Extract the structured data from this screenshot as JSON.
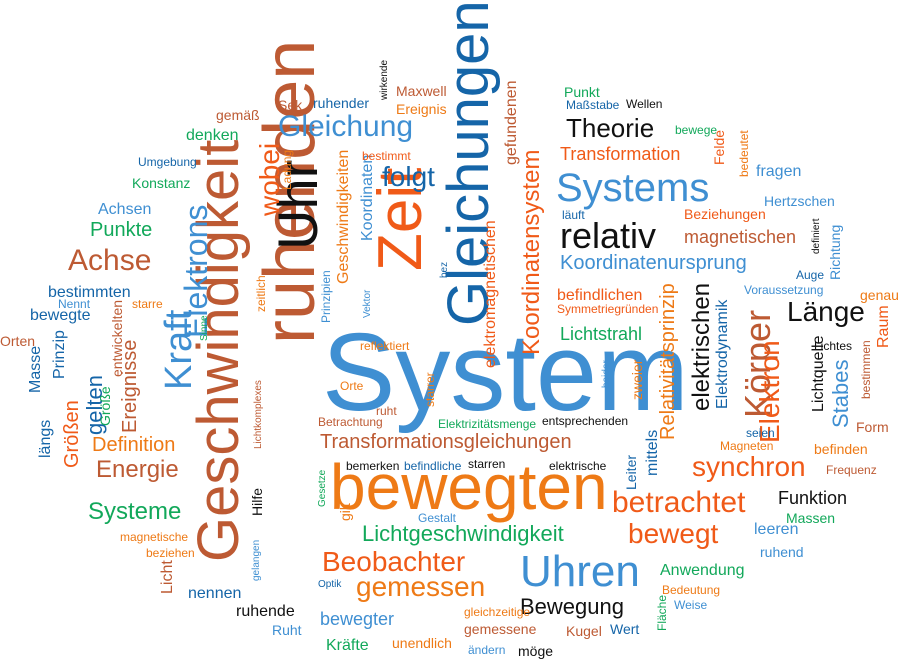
{
  "palette": {
    "blue": "#3f8fd2",
    "darkblue": "#1565a8",
    "rust": "#bd5a33",
    "orange": "#ee7a16",
    "redorange": "#f05a18",
    "green": "#12a85a",
    "black": "#111111"
  },
  "words": [
    {
      "text": "System",
      "color": "blue"
    },
    {
      "text": "Zeit",
      "color": "redorange"
    },
    {
      "text": "Gleichungen",
      "color": "darkblue"
    },
    {
      "text": "ruhenden",
      "color": "rust"
    },
    {
      "text": "Geschwindigkeit",
      "color": "rust"
    },
    {
      "text": "bewegten",
      "color": "orange"
    },
    {
      "text": "Uhr",
      "color": "black"
    },
    {
      "text": "Systems",
      "color": "blue"
    },
    {
      "text": "relativ",
      "color": "black"
    },
    {
      "text": "Uhren",
      "color": "blue"
    },
    {
      "text": "Gleichung",
      "color": "blue"
    },
    {
      "text": "Körper",
      "color": "rust"
    },
    {
      "text": "Kraft",
      "color": "blue"
    },
    {
      "text": "Elektrons",
      "color": "blue"
    },
    {
      "text": "Achse",
      "color": "rust"
    },
    {
      "text": "Beobachter",
      "color": "redorange"
    },
    {
      "text": "gemessen",
      "color": "orange"
    },
    {
      "text": "Transformationsgleichungen",
      "color": "rust"
    },
    {
      "text": "betrachtet",
      "color": "redorange"
    },
    {
      "text": "synchron",
      "color": "redorange"
    },
    {
      "text": "bewegt",
      "color": "redorange"
    },
    {
      "text": "elektrischen",
      "color": "black"
    },
    {
      "text": "Länge",
      "color": "black"
    },
    {
      "text": "Theorie",
      "color": "black"
    },
    {
      "text": "folgt",
      "color": "darkblue"
    },
    {
      "text": "wobei",
      "color": "redorange"
    },
    {
      "text": "Koordinatensystem",
      "color": "redorange"
    },
    {
      "text": "Energie",
      "color": "rust"
    },
    {
      "text": "Systeme",
      "color": "green"
    },
    {
      "text": "Lichtgeschwindigkeit",
      "color": "green"
    },
    {
      "text": "Elektron",
      "color": "redorange"
    },
    {
      "text": "Bewegung",
      "color": "black"
    },
    {
      "text": "Koordinatenursprung",
      "color": "blue"
    },
    {
      "text": "Relativitätsprinzip",
      "color": "orange"
    },
    {
      "text": "gelten",
      "color": "darkblue"
    },
    {
      "text": "Ereignisse",
      "color": "rust"
    },
    {
      "text": "Definition",
      "color": "orange"
    },
    {
      "text": "Größen",
      "color": "redorange"
    },
    {
      "text": "Stabes",
      "color": "blue"
    },
    {
      "text": "Elektrodynamik",
      "color": "darkblue"
    },
    {
      "text": "Lichtquelle",
      "color": "black"
    },
    {
      "text": "Funktion",
      "color": "black"
    },
    {
      "text": "Transformation",
      "color": "redorange"
    },
    {
      "text": "magnetischen",
      "color": "rust"
    },
    {
      "text": "Lichtstrahl",
      "color": "green"
    },
    {
      "text": "befindlichen",
      "color": "redorange"
    },
    {
      "text": "Punkte",
      "color": "green"
    },
    {
      "text": "Achsen",
      "color": "blue"
    },
    {
      "text": "denken",
      "color": "green"
    },
    {
      "text": "Konstanz",
      "color": "green"
    },
    {
      "text": "Umgebung",
      "color": "darkblue"
    },
    {
      "text": "gemäß",
      "color": "rust"
    },
    {
      "text": "Sek",
      "color": "rust"
    },
    {
      "text": "ruhender",
      "color": "darkblue"
    },
    {
      "text": "Maxwell",
      "color": "rust"
    },
    {
      "text": "Ereignis",
      "color": "orange"
    },
    {
      "text": "wirkende",
      "color": "black"
    },
    {
      "text": "Punkt",
      "color": "green"
    },
    {
      "text": "Maßstabe",
      "color": "darkblue"
    },
    {
      "text": "Wellen",
      "color": "black"
    },
    {
      "text": "bewege",
      "color": "green"
    },
    {
      "text": "Felde",
      "color": "redorange"
    },
    {
      "text": "bedeutet",
      "color": "orange"
    },
    {
      "text": "fragen",
      "color": "blue"
    },
    {
      "text": "Hertzschen",
      "color": "blue"
    },
    {
      "text": "läuft",
      "color": "darkblue"
    },
    {
      "text": "Beziehungen",
      "color": "redorange"
    },
    {
      "text": "definiert",
      "color": "black"
    },
    {
      "text": "Richtung",
      "color": "blue"
    },
    {
      "text": "Auge",
      "color": "darkblue"
    },
    {
      "text": "Voraussetzung",
      "color": "blue"
    },
    {
      "text": "genau",
      "color": "orange"
    },
    {
      "text": "Raum",
      "color": "redorange"
    },
    {
      "text": "Form",
      "color": "rust"
    },
    {
      "text": "befinden",
      "color": "orange"
    },
    {
      "text": "Frequenz",
      "color": "rust"
    },
    {
      "text": "Massen",
      "color": "green"
    },
    {
      "text": "leeren",
      "color": "blue"
    },
    {
      "text": "ruhend",
      "color": "blue"
    },
    {
      "text": "Anwendung",
      "color": "green"
    },
    {
      "text": "Bedeutung",
      "color": "orange"
    },
    {
      "text": "Weise",
      "color": "blue"
    },
    {
      "text": "Fläche",
      "color": "green"
    },
    {
      "text": "Wert",
      "color": "darkblue"
    },
    {
      "text": "Kugel",
      "color": "rust"
    },
    {
      "text": "möge",
      "color": "black"
    },
    {
      "text": "ändern",
      "color": "blue"
    },
    {
      "text": "gemessene",
      "color": "rust"
    },
    {
      "text": "gleichzeitige",
      "color": "orange"
    },
    {
      "text": "unendlich",
      "color": "orange"
    },
    {
      "text": "Kräfte",
      "color": "green"
    },
    {
      "text": "bewegter",
      "color": "blue"
    },
    {
      "text": "Ruht",
      "color": "blue"
    },
    {
      "text": "ruhende",
      "color": "black"
    },
    {
      "text": "nennen",
      "color": "darkblue"
    },
    {
      "text": "Licht",
      "color": "rust"
    },
    {
      "text": "beziehen",
      "color": "orange"
    },
    {
      "text": "magnetische",
      "color": "orange"
    },
    {
      "text": "Optik",
      "color": "darkblue"
    },
    {
      "text": "gelangen",
      "color": "blue"
    },
    {
      "text": "Gestalt",
      "color": "blue"
    },
    {
      "text": "gilt",
      "color": "orange"
    },
    {
      "text": "Gesetze",
      "color": "green"
    },
    {
      "text": "Hilfe",
      "color": "black"
    },
    {
      "text": "Lichtkomplexes",
      "color": "rust"
    },
    {
      "text": "bemerken",
      "color": "black"
    },
    {
      "text": "befindliche",
      "color": "darkblue"
    },
    {
      "text": "starren",
      "color": "black"
    },
    {
      "text": "elektrische",
      "color": "black"
    },
    {
      "text": "Leiter",
      "color": "darkblue"
    },
    {
      "text": "mittels",
      "color": "darkblue"
    },
    {
      "text": "Magneten",
      "color": "orange"
    },
    {
      "text": "seien",
      "color": "darkblue"
    },
    {
      "text": "Lichtes",
      "color": "black"
    },
    {
      "text": "bestimmen",
      "color": "rust"
    },
    {
      "text": "bestimmten",
      "color": "darkblue"
    },
    {
      "text": "bewegte",
      "color": "darkblue"
    },
    {
      "text": "Nennt",
      "color": "blue"
    },
    {
      "text": "starre",
      "color": "orange"
    },
    {
      "text": "entwickelten",
      "color": "rust"
    },
    {
      "text": "Orten",
      "color": "rust"
    },
    {
      "text": "Masse",
      "color": "darkblue"
    },
    {
      "text": "Prinzip",
      "color": "darkblue"
    },
    {
      "text": "Größe",
      "color": "green"
    },
    {
      "text": "längs",
      "color": "darkblue"
    },
    {
      "text": "Sinne",
      "color": "green"
    },
    {
      "text": "zeitlich",
      "color": "orange"
    },
    {
      "text": "Prinzipien",
      "color": "blue"
    },
    {
      "text": "Vektor",
      "color": "blue"
    },
    {
      "text": "Geschwindigkeiten",
      "color": "orange"
    },
    {
      "text": "Koordinaten",
      "color": "blue"
    },
    {
      "text": "bez",
      "color": "darkblue"
    },
    {
      "text": "elektromagnetischen",
      "color": "redorange"
    },
    {
      "text": "gefundenen",
      "color": "rust"
    },
    {
      "text": "Symmetriegründen",
      "color": "redorange"
    },
    {
      "text": "reflektiert",
      "color": "orange"
    },
    {
      "text": "Orte",
      "color": "orange"
    },
    {
      "text": "ruht",
      "color": "rust"
    },
    {
      "text": "Betrachtung",
      "color": "rust"
    },
    {
      "text": "starrer",
      "color": "orange"
    },
    {
      "text": "Elektrizitätsmenge",
      "color": "green"
    },
    {
      "text": "entsprechenden",
      "color": "black"
    },
    {
      "text": "beider",
      "color": "blue"
    },
    {
      "text": "zweier",
      "color": "orange"
    },
    {
      "text": "bestimmt",
      "color": "redorange"
    },
    {
      "text": "Ladung",
      "color": "orange"
    }
  ]
}
